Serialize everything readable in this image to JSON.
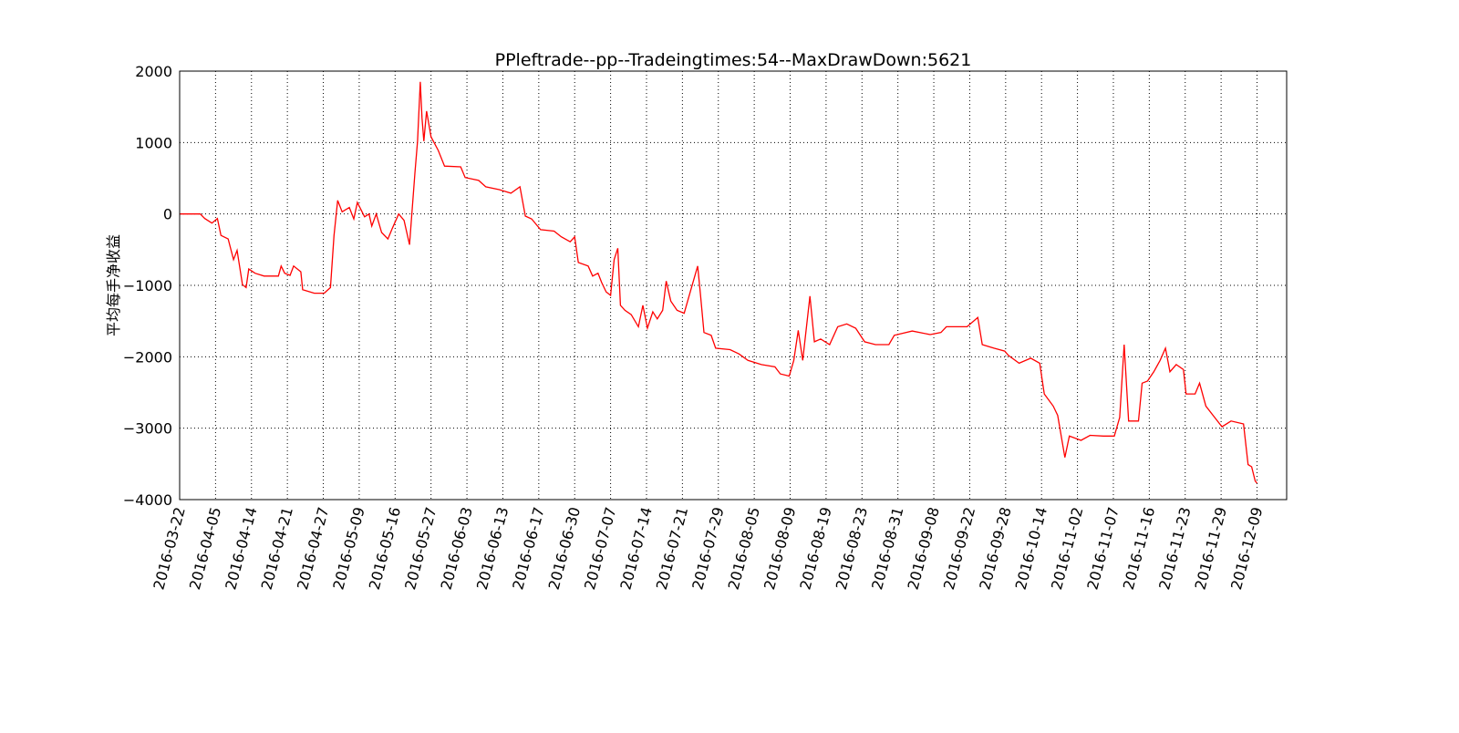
{
  "chart_data": {
    "type": "line",
    "title": "PPleftrade--pp--Tradeingtimes:54--MaxDrawDown:5621",
    "y_label": "平均每手净收益",
    "grid": true,
    "xlim": [
      0,
      1233
    ],
    "ylim": [
      -4000,
      2000
    ],
    "yticks": [
      {
        "value": -4000,
        "label": "−4000"
      },
      {
        "value": -3000,
        "label": "−3000"
      },
      {
        "value": -2000,
        "label": "−2000"
      },
      {
        "value": -1000,
        "label": "−1000"
      },
      0,
      1000,
      2000
    ],
    "xticks": [
      {
        "value": 0,
        "label": "2016-03-22"
      },
      {
        "value": 40,
        "label": "2016-04-05"
      },
      {
        "value": 80,
        "label": "2016-04-14"
      },
      {
        "value": 120,
        "label": "2016-04-21"
      },
      {
        "value": 160,
        "label": "2016-04-27"
      },
      {
        "value": 200,
        "label": "2016-05-09"
      },
      {
        "value": 240,
        "label": "2016-05-16"
      },
      {
        "value": 280,
        "label": "2016-05-27"
      },
      {
        "value": 320,
        "label": "2016-06-03"
      },
      {
        "value": 360,
        "label": "2016-06-13"
      },
      {
        "value": 400,
        "label": "2016-06-17"
      },
      {
        "value": 440,
        "label": "2016-06-30"
      },
      {
        "value": 480,
        "label": "2016-07-07"
      },
      {
        "value": 520,
        "label": "2016-07-14"
      },
      {
        "value": 560,
        "label": "2016-07-21"
      },
      {
        "value": 600,
        "label": "2016-07-29"
      },
      {
        "value": 640,
        "label": "2016-08-05"
      },
      {
        "value": 680,
        "label": "2016-08-09"
      },
      {
        "value": 720,
        "label": "2016-08-19"
      },
      {
        "value": 760,
        "label": "2016-08-23"
      },
      {
        "value": 800,
        "label": "2016-08-31"
      },
      {
        "value": 840,
        "label": "2016-09-08"
      },
      {
        "value": 880,
        "label": "2016-09-22"
      },
      {
        "value": 920,
        "label": "2016-09-28"
      },
      {
        "value": 960,
        "label": "2016-10-14"
      },
      {
        "value": 1000,
        "label": "2016-11-02"
      },
      {
        "value": 1040,
        "label": "2016-11-07"
      },
      {
        "value": 1080,
        "label": "2016-11-16"
      },
      {
        "value": 1120,
        "label": "2016-11-23"
      },
      {
        "value": 1160,
        "label": "2016-11-29"
      },
      {
        "value": 1200,
        "label": "2016-12-09"
      }
    ],
    "series": [
      {
        "color": "#ff0000",
        "x": [
          0,
          23,
          28,
          36,
          42,
          46,
          54,
          60,
          64,
          70,
          74,
          77,
          84,
          94,
          110,
          113,
          117,
          123,
          127,
          135,
          137,
          150,
          161,
          168,
          172,
          176,
          181,
          189,
          194,
          198,
          206,
          211,
          214,
          219,
          225,
          232,
          237,
          244,
          250,
          256,
          262,
          265,
          268,
          270,
          272,
          275,
          280,
          288,
          295,
          313,
          318,
          333,
          341,
          356,
          369,
          379,
          385,
          392,
          402,
          417,
          425,
          435,
          440,
          444,
          455,
          460,
          466,
          470,
          475,
          480,
          484,
          488,
          491,
          496,
          503,
          511,
          516,
          521,
          527,
          532,
          538,
          542,
          547,
          554,
          562,
          569,
          577,
          580,
          584,
          592,
          597,
          613,
          623,
          633,
          648,
          663,
          669,
          679,
          684,
          689,
          694,
          702,
          707,
          714,
          724,
          733,
          743,
          753,
          763,
          775,
          790,
          796,
          816,
          836,
          848,
          854,
          877,
          889,
          894,
          907,
          919,
          923,
          935,
          948,
          958,
          963,
          973,
          978,
          986,
          991,
          1004,
          1014,
          1029,
          1041,
          1047,
          1052,
          1057,
          1068,
          1072,
          1078,
          1085,
          1092,
          1098,
          1103,
          1110,
          1118,
          1121,
          1131,
          1136,
          1143,
          1151,
          1161,
          1171,
          1185,
          1190,
          1194,
          1198,
          1200
        ],
        "values": [
          0,
          0,
          -64,
          -128,
          -64,
          -300,
          -350,
          -640,
          -510,
          -990,
          -1030,
          -770,
          -830,
          -870,
          -870,
          -730,
          -830,
          -860,
          -730,
          -810,
          -1060,
          -1110,
          -1110,
          -1030,
          -300,
          190,
          30,
          90,
          -70,
          160,
          -40,
          0,
          -170,
          0,
          -260,
          -350,
          -200,
          0,
          -90,
          -430,
          570,
          1020,
          1850,
          1340,
          1020,
          1440,
          1080,
          890,
          670,
          660,
          510,
          470,
          380,
          340,
          290,
          380,
          -30,
          -70,
          -220,
          -240,
          -320,
          -390,
          -320,
          -680,
          -730,
          -870,
          -830,
          -960,
          -1090,
          -1140,
          -640,
          -480,
          -1280,
          -1350,
          -1410,
          -1580,
          -1280,
          -1600,
          -1370,
          -1470,
          -1350,
          -940,
          -1220,
          -1350,
          -1390,
          -1080,
          -730,
          -1120,
          -1660,
          -1700,
          -1880,
          -1900,
          -1960,
          -2050,
          -2110,
          -2140,
          -2240,
          -2270,
          -2050,
          -1630,
          -2050,
          -1150,
          -1790,
          -1750,
          -1830,
          -1580,
          -1540,
          -1600,
          -1790,
          -1830,
          -1830,
          -1700,
          -1640,
          -1690,
          -1660,
          -1580,
          -1580,
          -1450,
          -1830,
          -1880,
          -1920,
          -1980,
          -2090,
          -2020,
          -2090,
          -2520,
          -2690,
          -2820,
          -3410,
          -3110,
          -3170,
          -3100,
          -3110,
          -3110,
          -2850,
          -1830,
          -2900,
          -2900,
          -2370,
          -2340,
          -2210,
          -2050,
          -1880,
          -2210,
          -2110,
          -2180,
          -2520,
          -2520,
          -2370,
          -2690,
          -2820,
          -2980,
          -2900,
          -2940,
          -3510,
          -3540,
          -3740,
          -3770
        ]
      }
    ]
  }
}
